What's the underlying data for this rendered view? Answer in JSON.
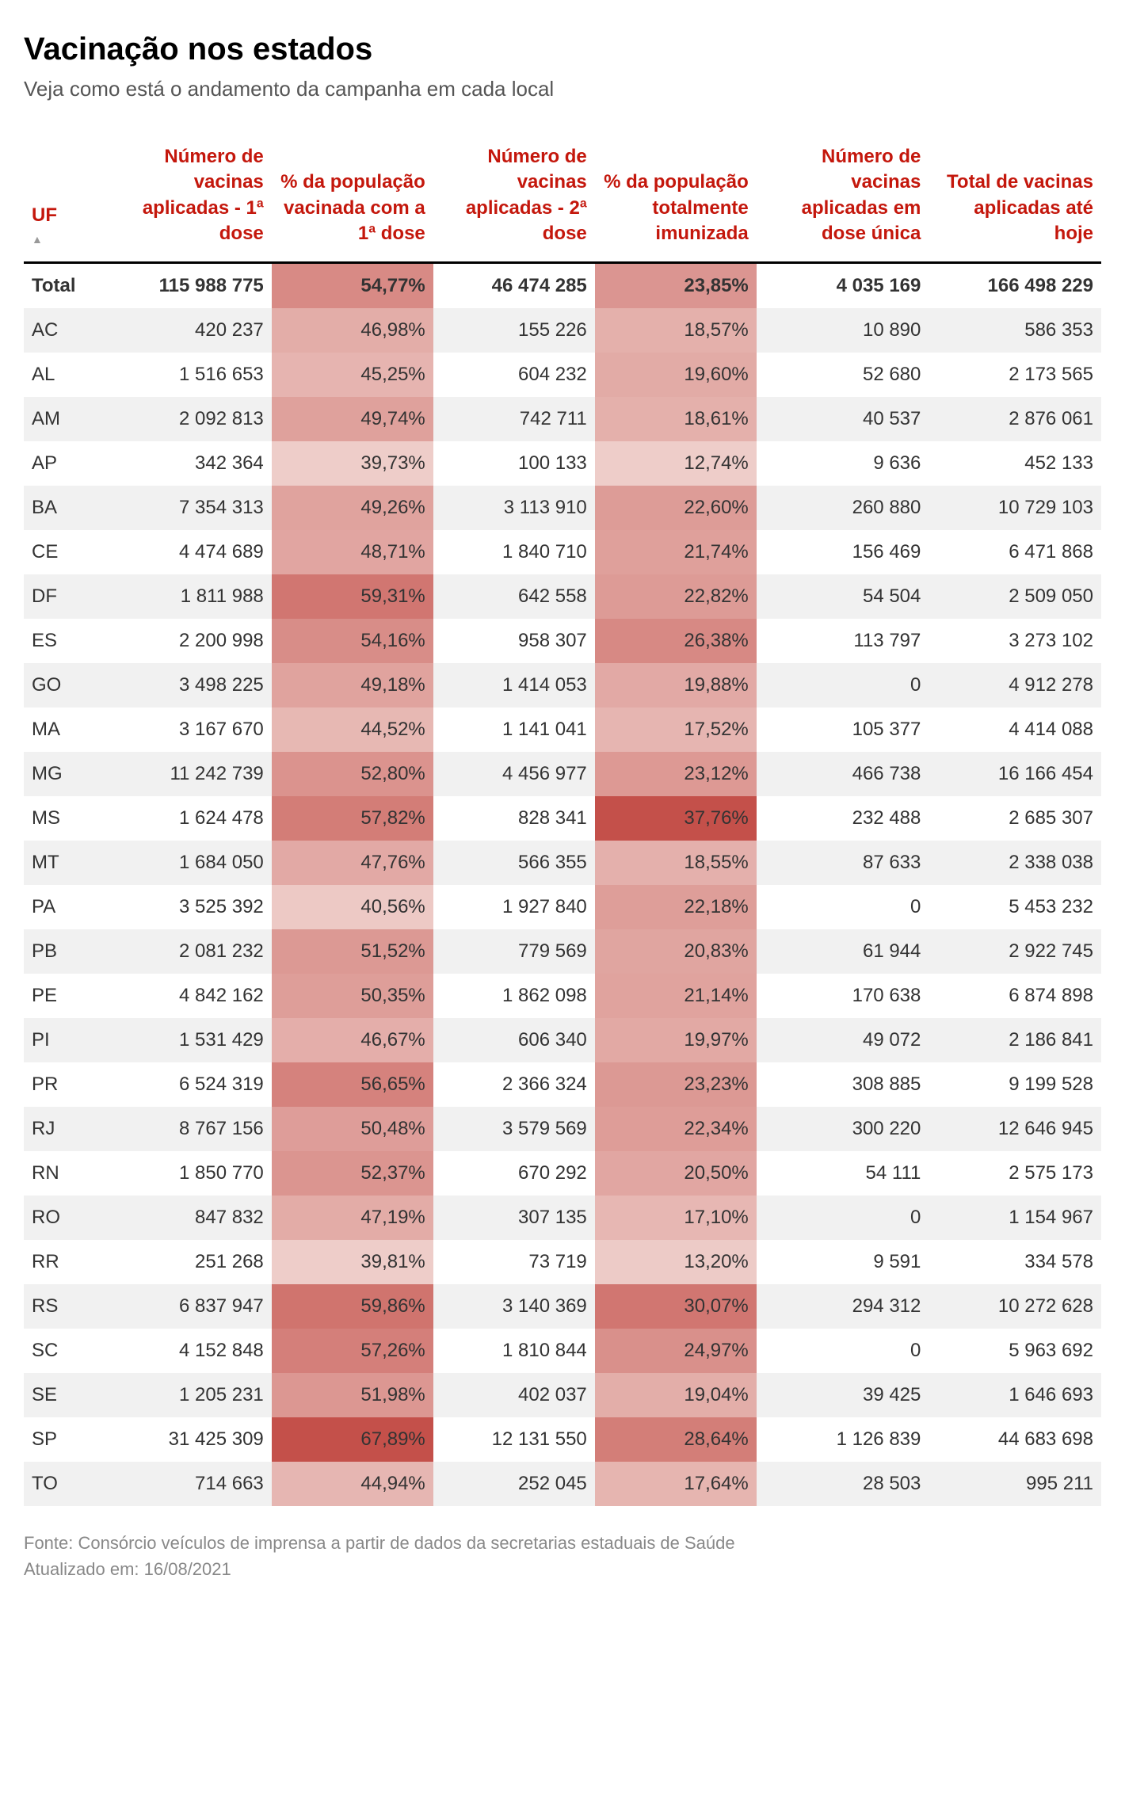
{
  "title": "Vacinação nos estados",
  "subtitle": "Veja como está o andamento da campanha em cada local",
  "headers": {
    "uf": "UF",
    "dose1": "Número de vacinas aplicadas - 1ª dose",
    "pct1": "% da população vacinada com a 1ª dose",
    "dose2": "Número de vacinas aplicadas - 2ª dose",
    "pct2": "% da população totalmente imunizada",
    "single": "Número de vacinas aplicadas em dose única",
    "total": "Total de vacinas aplicadas até hoje"
  },
  "sort_glyph": "▲",
  "total_row": {
    "uf": "Total",
    "dose1": "115 988 775",
    "pct1": "54,77%",
    "dose2": "46 474 285",
    "pct2": "23,85%",
    "single": "4 035 169",
    "total": "166 498 229",
    "pct1_val": 54.77,
    "pct2_val": 23.85
  },
  "rows": [
    {
      "uf": "AC",
      "dose1": "420 237",
      "pct1": "46,98%",
      "dose2": "155 226",
      "pct2": "18,57%",
      "single": "10 890",
      "total": "586 353",
      "pct1_val": 46.98,
      "pct2_val": 18.57
    },
    {
      "uf": "AL",
      "dose1": "1 516 653",
      "pct1": "45,25%",
      "dose2": "604 232",
      "pct2": "19,60%",
      "single": "52 680",
      "total": "2 173 565",
      "pct1_val": 45.25,
      "pct2_val": 19.6
    },
    {
      "uf": "AM",
      "dose1": "2 092 813",
      "pct1": "49,74%",
      "dose2": "742 711",
      "pct2": "18,61%",
      "single": "40 537",
      "total": "2 876 061",
      "pct1_val": 49.74,
      "pct2_val": 18.61
    },
    {
      "uf": "AP",
      "dose1": "342 364",
      "pct1": "39,73%",
      "dose2": "100 133",
      "pct2": "12,74%",
      "single": "9 636",
      "total": "452 133",
      "pct1_val": 39.73,
      "pct2_val": 12.74
    },
    {
      "uf": "BA",
      "dose1": "7 354 313",
      "pct1": "49,26%",
      "dose2": "3 113 910",
      "pct2": "22,60%",
      "single": "260 880",
      "total": "10 729 103",
      "pct1_val": 49.26,
      "pct2_val": 22.6
    },
    {
      "uf": "CE",
      "dose1": "4 474 689",
      "pct1": "48,71%",
      "dose2": "1 840 710",
      "pct2": "21,74%",
      "single": "156 469",
      "total": "6 471 868",
      "pct1_val": 48.71,
      "pct2_val": 21.74
    },
    {
      "uf": "DF",
      "dose1": "1 811 988",
      "pct1": "59,31%",
      "dose2": "642 558",
      "pct2": "22,82%",
      "single": "54 504",
      "total": "2 509 050",
      "pct1_val": 59.31,
      "pct2_val": 22.82
    },
    {
      "uf": "ES",
      "dose1": "2 200 998",
      "pct1": "54,16%",
      "dose2": "958 307",
      "pct2": "26,38%",
      "single": "113 797",
      "total": "3 273 102",
      "pct1_val": 54.16,
      "pct2_val": 26.38
    },
    {
      "uf": "GO",
      "dose1": "3 498 225",
      "pct1": "49,18%",
      "dose2": "1 414 053",
      "pct2": "19,88%",
      "single": "0",
      "total": "4 912 278",
      "pct1_val": 49.18,
      "pct2_val": 19.88
    },
    {
      "uf": "MA",
      "dose1": "3 167 670",
      "pct1": "44,52%",
      "dose2": "1 141 041",
      "pct2": "17,52%",
      "single": "105 377",
      "total": "4 414 088",
      "pct1_val": 44.52,
      "pct2_val": 17.52
    },
    {
      "uf": "MG",
      "dose1": "11 242 739",
      "pct1": "52,80%",
      "dose2": "4 456 977",
      "pct2": "23,12%",
      "single": "466 738",
      "total": "16 166 454",
      "pct1_val": 52.8,
      "pct2_val": 23.12
    },
    {
      "uf": "MS",
      "dose1": "1 624 478",
      "pct1": "57,82%",
      "dose2": "828 341",
      "pct2": "37,76%",
      "single": "232 488",
      "total": "2 685 307",
      "pct1_val": 57.82,
      "pct2_val": 37.76
    },
    {
      "uf": "MT",
      "dose1": "1 684 050",
      "pct1": "47,76%",
      "dose2": "566 355",
      "pct2": "18,55%",
      "single": "87 633",
      "total": "2 338 038",
      "pct1_val": 47.76,
      "pct2_val": 18.55
    },
    {
      "uf": "PA",
      "dose1": "3 525 392",
      "pct1": "40,56%",
      "dose2": "1 927 840",
      "pct2": "22,18%",
      "single": "0",
      "total": "5 453 232",
      "pct1_val": 40.56,
      "pct2_val": 22.18
    },
    {
      "uf": "PB",
      "dose1": "2 081 232",
      "pct1": "51,52%",
      "dose2": "779 569",
      "pct2": "20,83%",
      "single": "61 944",
      "total": "2 922 745",
      "pct1_val": 51.52,
      "pct2_val": 20.83
    },
    {
      "uf": "PE",
      "dose1": "4 842 162",
      "pct1": "50,35%",
      "dose2": "1 862 098",
      "pct2": "21,14%",
      "single": "170 638",
      "total": "6 874 898",
      "pct1_val": 50.35,
      "pct2_val": 21.14
    },
    {
      "uf": "PI",
      "dose1": "1 531 429",
      "pct1": "46,67%",
      "dose2": "606 340",
      "pct2": "19,97%",
      "single": "49 072",
      "total": "2 186 841",
      "pct1_val": 46.67,
      "pct2_val": 19.97
    },
    {
      "uf": "PR",
      "dose1": "6 524 319",
      "pct1": "56,65%",
      "dose2": "2 366 324",
      "pct2": "23,23%",
      "single": "308 885",
      "total": "9 199 528",
      "pct1_val": 56.65,
      "pct2_val": 23.23
    },
    {
      "uf": "RJ",
      "dose1": "8 767 156",
      "pct1": "50,48%",
      "dose2": "3 579 569",
      "pct2": "22,34%",
      "single": "300 220",
      "total": "12 646 945",
      "pct1_val": 50.48,
      "pct2_val": 22.34
    },
    {
      "uf": "RN",
      "dose1": "1 850 770",
      "pct1": "52,37%",
      "dose2": "670 292",
      "pct2": "20,50%",
      "single": "54 111",
      "total": "2 575 173",
      "pct1_val": 52.37,
      "pct2_val": 20.5
    },
    {
      "uf": "RO",
      "dose1": "847 832",
      "pct1": "47,19%",
      "dose2": "307 135",
      "pct2": "17,10%",
      "single": "0",
      "total": "1 154 967",
      "pct1_val": 47.19,
      "pct2_val": 17.1
    },
    {
      "uf": "RR",
      "dose1": "251 268",
      "pct1": "39,81%",
      "dose2": "73 719",
      "pct2": "13,20%",
      "single": "9 591",
      "total": "334 578",
      "pct1_val": 39.81,
      "pct2_val": 13.2
    },
    {
      "uf": "RS",
      "dose1": "6 837 947",
      "pct1": "59,86%",
      "dose2": "3 140 369",
      "pct2": "30,07%",
      "single": "294 312",
      "total": "10 272 628",
      "pct1_val": 59.86,
      "pct2_val": 30.07
    },
    {
      "uf": "SC",
      "dose1": "4 152 848",
      "pct1": "57,26%",
      "dose2": "1 810 844",
      "pct2": "24,97%",
      "single": "0",
      "total": "5 963 692",
      "pct1_val": 57.26,
      "pct2_val": 24.97
    },
    {
      "uf": "SE",
      "dose1": "1 205 231",
      "pct1": "51,98%",
      "dose2": "402 037",
      "pct2": "19,04%",
      "single": "39 425",
      "total": "1 646 693",
      "pct1_val": 51.98,
      "pct2_val": 19.04
    },
    {
      "uf": "SP",
      "dose1": "31 425 309",
      "pct1": "67,89%",
      "dose2": "12 131 550",
      "pct2": "28,64%",
      "single": "1 126 839",
      "total": "44 683 698",
      "pct1_val": 67.89,
      "pct2_val": 28.64
    },
    {
      "uf": "TO",
      "dose1": "714 663",
      "pct1": "44,94%",
      "dose2": "252 045",
      "pct2": "17,64%",
      "single": "28 503",
      "total": "995 211",
      "pct1_val": 44.94,
      "pct2_val": 17.64
    }
  ],
  "heatmap": {
    "pct1": {
      "min": 39.73,
      "max": 67.89,
      "light": "#eecdc9",
      "dark": "#c4504a"
    },
    "pct2": {
      "min": 12.74,
      "max": 37.76,
      "light": "#eecdc9",
      "dark": "#c4504a"
    }
  },
  "column_widths": [
    "7%",
    "16%",
    "15%",
    "15%",
    "15%",
    "16%",
    "16%"
  ],
  "footer": {
    "source": "Fonte: Consórcio veículos de imprensa a partir de dados da secretarias estaduais de Saúde",
    "updated": "Atualizado em: 16/08/2021"
  }
}
